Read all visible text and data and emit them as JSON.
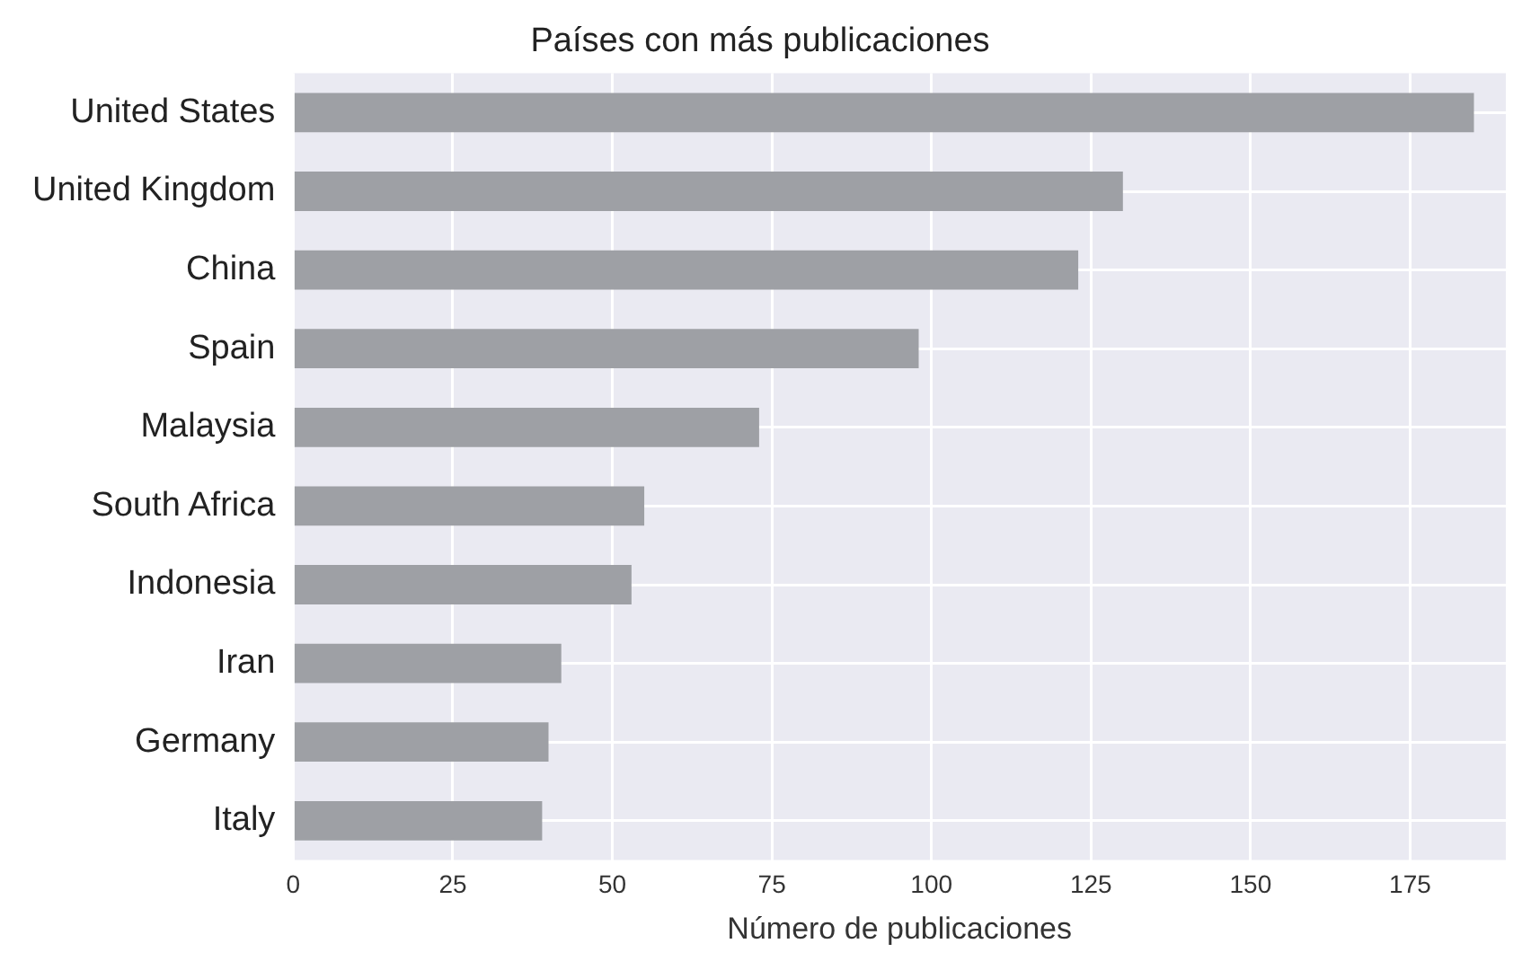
{
  "chart_data": {
    "type": "bar",
    "orientation": "horizontal",
    "title": "Países con más publicaciones",
    "xlabel": "Número de publicaciones",
    "categories": [
      "United States",
      "United Kingdom",
      "China",
      "Spain",
      "Malaysia",
      "South Africa",
      "Indonesia",
      "Iran",
      "Germany",
      "Italy"
    ],
    "values": [
      185,
      130,
      123,
      98,
      73,
      55,
      53,
      42,
      40,
      39
    ],
    "color": "#9ea0a5",
    "xlim": [
      0,
      190
    ],
    "xticks": [
      0,
      25,
      50,
      75,
      100,
      125,
      150,
      175
    ],
    "grid": true
  }
}
